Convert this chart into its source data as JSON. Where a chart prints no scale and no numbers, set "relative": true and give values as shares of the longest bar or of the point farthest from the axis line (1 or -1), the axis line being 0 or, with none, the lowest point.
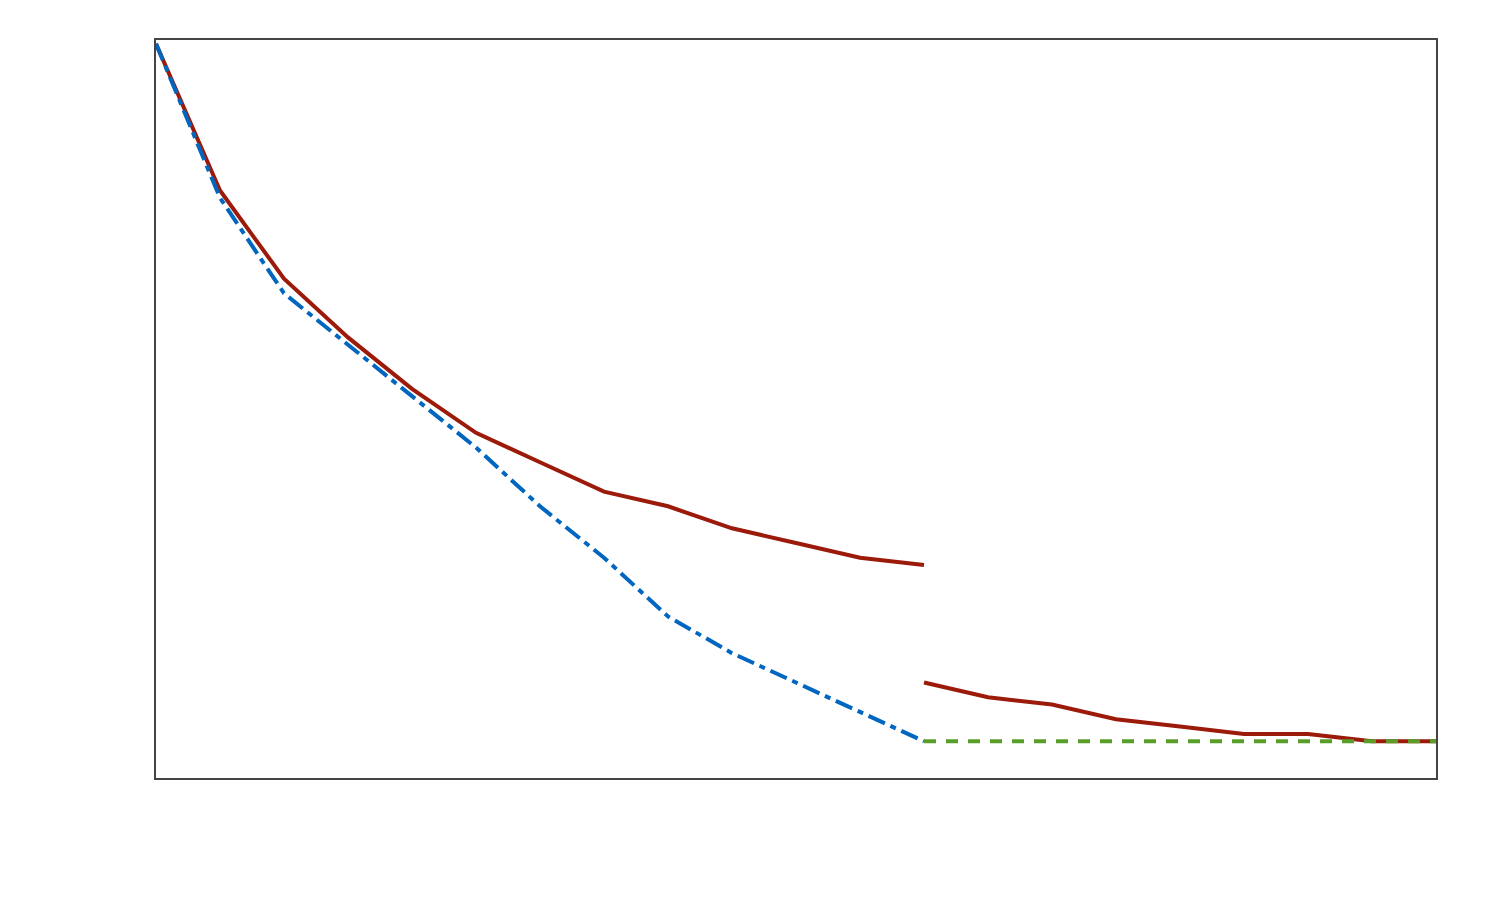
{
  "chart_data": {
    "type": "line",
    "relative": true,
    "categories": [
      null,
      null,
      null,
      null,
      null,
      null,
      null,
      null,
      null,
      null,
      null,
      null,
      null,
      null,
      null,
      null,
      null,
      null,
      null,
      null,
      null
    ],
    "series": [
      {
        "color": "#9b1a0a",
        "line_style": "solid",
        "values": [
          1.0,
          0.8,
          0.68,
          0.6,
          0.53,
          0.47,
          0.43,
          0.39,
          0.37,
          0.34,
          0.32,
          0.3,
          0.29,
          null,
          null,
          null,
          null,
          null,
          null,
          null,
          null
        ]
      },
      {
        "color": "#0066bf",
        "line_style": "dashdot",
        "values": [
          1.0,
          0.79,
          0.66,
          0.59,
          0.52,
          0.45,
          0.37,
          0.3,
          0.22,
          0.17,
          0.13,
          0.09,
          0.05,
          null,
          null,
          null,
          null,
          null,
          null,
          null,
          null
        ]
      },
      {
        "color": "#9b1a0a",
        "line_style": "solid",
        "values": [
          null,
          null,
          null,
          null,
          null,
          null,
          null,
          null,
          null,
          null,
          null,
          null,
          0.13,
          0.11,
          0.1,
          0.08,
          0.07,
          0.06,
          0.06,
          0.05,
          0.05
        ]
      },
      {
        "color": "#5a9e2a",
        "line_style": "dashed",
        "values": [
          null,
          null,
          null,
          null,
          null,
          null,
          null,
          null,
          null,
          null,
          null,
          null,
          0.05,
          0.05,
          0.05,
          0.05,
          0.05,
          0.05,
          0.05,
          0.05,
          0.05
        ]
      }
    ]
  }
}
